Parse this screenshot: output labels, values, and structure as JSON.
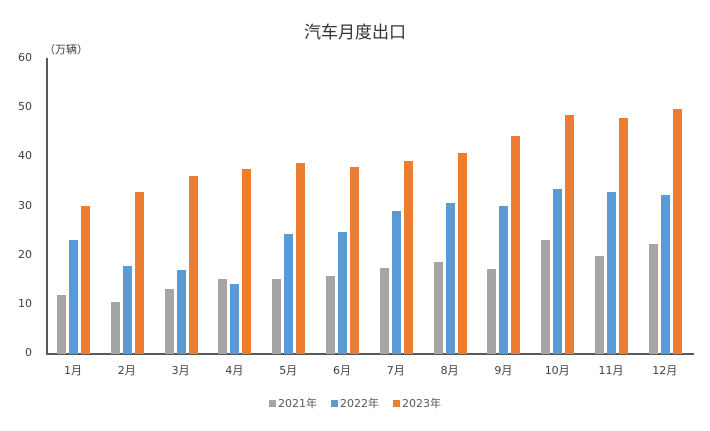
{
  "chart_data": {
    "type": "bar",
    "title": "汽车月度出口",
    "ylabel": "（万辆）",
    "xlabel": "",
    "ylim": [
      0,
      60
    ],
    "yticks": [
      0,
      10,
      20,
      30,
      40,
      50,
      60
    ],
    "grid": false,
    "legend_position": "bottom",
    "categories": [
      "1月",
      "2月",
      "3月",
      "4月",
      "5月",
      "6月",
      "7月",
      "8月",
      "9月",
      "10月",
      "11月",
      "12月"
    ],
    "series": [
      {
        "name": "2021年",
        "color": "#A5A5A5",
        "values": [
          12.0,
          10.5,
          13.2,
          15.2,
          15.2,
          15.8,
          17.5,
          18.8,
          17.3,
          23.1,
          20.0,
          22.3
        ]
      },
      {
        "name": "2022年",
        "color": "#5B9BD5",
        "values": [
          23.2,
          18.0,
          17.0,
          14.2,
          24.4,
          24.8,
          29.1,
          30.8,
          30.1,
          33.6,
          33.0,
          32.3
        ]
      },
      {
        "name": "2023年",
        "color": "#ED7D31",
        "values": [
          30.1,
          33.0,
          36.3,
          37.6,
          38.9,
          38.1,
          39.2,
          40.9,
          44.4,
          48.7,
          48.1,
          49.9
        ]
      }
    ]
  }
}
